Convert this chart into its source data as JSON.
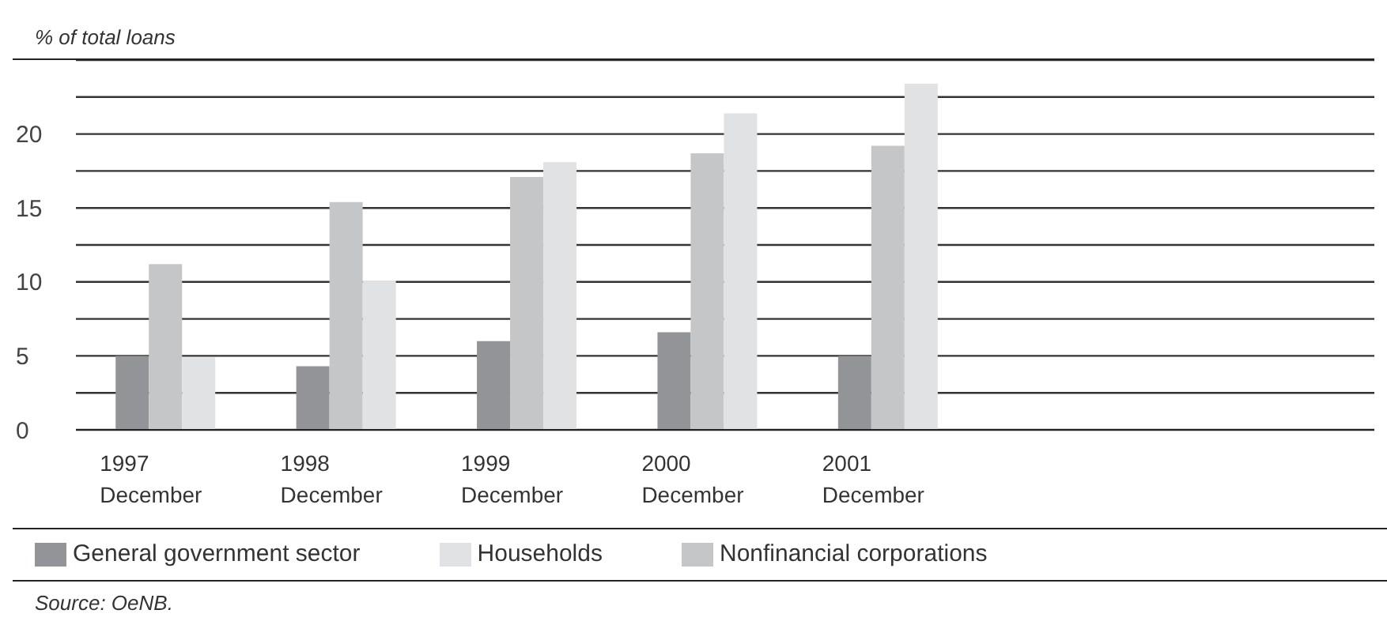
{
  "chart_data": {
    "type": "bar",
    "title": "% of total loans",
    "categories": [
      "1997\nDecember",
      "1998\nDecember",
      "1999\nDecember",
      "2000\nDecember",
      "2001\nDecember"
    ],
    "series": [
      {
        "name": "General government sector",
        "color": "#939497",
        "values": [
          5.0,
          4.3,
          6.0,
          6.6,
          5.0
        ]
      },
      {
        "name": "Nonfinancial corporations",
        "color": "#c5c6c8",
        "values": [
          11.2,
          15.4,
          17.1,
          18.7,
          19.2
        ]
      },
      {
        "name": "Households",
        "color": "#e1e2e3",
        "values": [
          4.9,
          10.1,
          18.1,
          21.4,
          23.4
        ]
      }
    ],
    "ylim": [
      0,
      25
    ],
    "yticks": [
      0,
      {
        "value": 2.5,
        "label": null
      },
      5,
      {
        "value": 7.5,
        "label": null
      },
      10,
      {
        "value": 12.5,
        "label": null
      },
      15,
      {
        "value": 17.5,
        "label": null
      },
      20,
      {
        "value": 22.5,
        "label": null
      },
      {
        "value": 25,
        "label": null
      }
    ],
    "grid": "y",
    "legend": "bottom",
    "annotations": [
      "Source: OeNB."
    ]
  }
}
